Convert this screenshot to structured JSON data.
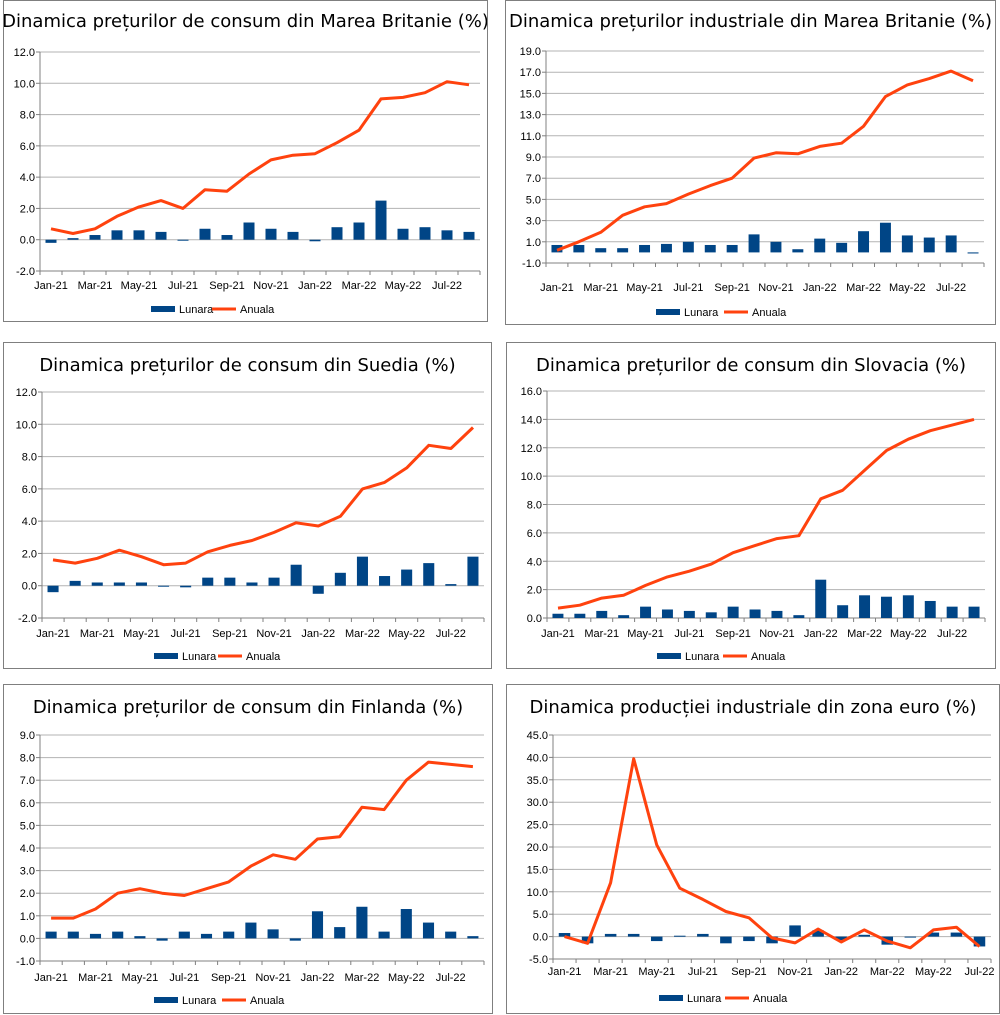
{
  "colors": {
    "bar": "#004586",
    "line": "#ff420e",
    "grid": "#b3b3b3",
    "axis": "#808080"
  },
  "chart_data": [
    {
      "type": "bar+line",
      "title": "Dinamica prețurilor de consum din Marea Britanie (%)",
      "ylim": [
        -2,
        12
      ],
      "ystep": 2,
      "ydecimals": 1,
      "x_tick_labels": [
        "Jan-21",
        "Mar-21",
        "May-21",
        "Jul-21",
        "Sep-21",
        "Nov-21",
        "Jan-22",
        "Mar-22",
        "May-22",
        "Jul-22"
      ],
      "tick_start": 0,
      "tick_every": 2,
      "series": [
        {
          "name": "Lunara",
          "kind": "bar",
          "values": [
            -0.2,
            0.1,
            0.3,
            0.6,
            0.6,
            0.5,
            0.0,
            0.7,
            0.3,
            1.1,
            0.7,
            0.5,
            -0.1,
            0.8,
            1.1,
            2.5,
            0.7,
            0.8,
            0.6,
            0.5
          ]
        },
        {
          "name": "Anuala",
          "kind": "line",
          "values": [
            0.7,
            0.4,
            0.7,
            1.5,
            2.1,
            2.5,
            2.0,
            3.2,
            3.1,
            4.2,
            5.1,
            5.4,
            5.5,
            6.2,
            7.0,
            9.0,
            9.1,
            9.4,
            10.1,
            9.9
          ]
        }
      ],
      "legend": [
        "Lunara",
        "Anuala"
      ]
    },
    {
      "type": "bar+line",
      "title": "Dinamica prețurilor industriale din Marea Britanie (%)",
      "ylim": [
        -1,
        19
      ],
      "ystep": 2,
      "ydecimals": 1,
      "x_tick_labels": [
        "Jan-21",
        "Mar-21",
        "May-21",
        "Jul-21",
        "Sep-21",
        "Nov-21",
        "Jan-22",
        "Mar-22",
        "May-22",
        "Jul-22"
      ],
      "tick_start": 0,
      "tick_every": 2,
      "series": [
        {
          "name": "Lunara",
          "kind": "bar",
          "values": [
            0.7,
            0.7,
            0.4,
            0.4,
            0.7,
            0.8,
            1.0,
            0.7,
            0.7,
            1.7,
            1.0,
            0.3,
            1.3,
            0.9,
            2.0,
            2.8,
            1.6,
            1.4,
            1.6,
            -0.1
          ]
        },
        {
          "name": "Anuala",
          "kind": "line",
          "values": [
            0.2,
            1.0,
            1.9,
            3.5,
            4.3,
            4.6,
            5.5,
            6.3,
            7.0,
            8.9,
            9.4,
            9.3,
            10.0,
            10.3,
            11.9,
            14.7,
            15.8,
            16.4,
            17.1,
            16.2
          ]
        }
      ],
      "legend": [
        "Lunara",
        "Anuala"
      ]
    },
    {
      "type": "bar+line",
      "title": "Dinamica prețurilor de consum din Suedia (%)",
      "ylim": [
        -2,
        12
      ],
      "ystep": 2,
      "ydecimals": 1,
      "x_tick_labels": [
        "Jan-21",
        "Mar-21",
        "May-21",
        "Jul-21",
        "Sep-21",
        "Nov-21",
        "Jan-22",
        "Mar-22",
        "May-22",
        "Jul-22"
      ],
      "tick_start": 0,
      "tick_every": 2,
      "series": [
        {
          "name": "Lunara",
          "kind": "bar",
          "values": [
            -0.4,
            0.3,
            0.2,
            0.2,
            0.2,
            0.0,
            -0.1,
            0.5,
            0.5,
            0.2,
            0.5,
            1.3,
            -0.5,
            0.8,
            1.8,
            0.6,
            1.0,
            1.4,
            0.1,
            1.8
          ]
        },
        {
          "name": "Anuala",
          "kind": "line",
          "values": [
            1.6,
            1.4,
            1.7,
            2.2,
            1.8,
            1.3,
            1.4,
            2.1,
            2.5,
            2.8,
            3.3,
            3.9,
            3.7,
            4.3,
            6.0,
            6.4,
            7.3,
            8.7,
            8.5,
            9.8
          ]
        }
      ],
      "legend": [
        "Lunara",
        "Anuala"
      ]
    },
    {
      "type": "bar+line",
      "title": "Dinamica prețurilor de consum din Slovacia (%)",
      "ylim": [
        0,
        16
      ],
      "ystep": 2,
      "ydecimals": 1,
      "x_tick_labels": [
        "Jan-21",
        "Mar-21",
        "May-21",
        "Jul-21",
        "Sep-21",
        "Nov-21",
        "Jan-22",
        "Mar-22",
        "May-22",
        "Jul-22"
      ],
      "tick_start": 0,
      "tick_every": 2,
      "series": [
        {
          "name": "Lunara",
          "kind": "bar",
          "values": [
            0.3,
            0.3,
            0.5,
            0.2,
            0.8,
            0.6,
            0.5,
            0.4,
            0.8,
            0.6,
            0.5,
            0.2,
            2.7,
            0.9,
            1.6,
            1.5,
            1.6,
            1.2,
            0.8,
            0.8
          ]
        },
        {
          "name": "Anuala",
          "kind": "line",
          "values": [
            0.7,
            0.9,
            1.4,
            1.6,
            2.3,
            2.9,
            3.3,
            3.8,
            4.6,
            5.1,
            5.6,
            5.8,
            8.4,
            9.0,
            10.4,
            11.8,
            12.6,
            13.2,
            13.6,
            14.0
          ]
        }
      ],
      "legend": [
        "Lunara",
        "Anuala"
      ]
    },
    {
      "type": "bar+line",
      "title": "Dinamica prețurilor de consum din Finlanda (%)",
      "ylim": [
        -1,
        9
      ],
      "ystep": 1,
      "ydecimals": 1,
      "x_tick_labels": [
        "Jan-21",
        "Mar-21",
        "May-21",
        "Jul-21",
        "Sep-21",
        "Nov-21",
        "Jan-22",
        "Mar-22",
        "May-22",
        "Jul-22"
      ],
      "tick_start": 0,
      "tick_every": 2,
      "series": [
        {
          "name": "Lunara",
          "kind": "bar",
          "values": [
            0.3,
            0.3,
            0.2,
            0.3,
            0.1,
            -0.1,
            0.3,
            0.2,
            0.3,
            0.7,
            0.4,
            -0.1,
            1.2,
            0.5,
            1.4,
            0.3,
            1.3,
            0.7,
            0.3,
            0.1
          ]
        },
        {
          "name": "Anuala",
          "kind": "line",
          "values": [
            0.9,
            0.9,
            1.3,
            2.0,
            2.2,
            2.0,
            1.9,
            2.2,
            2.5,
            3.2,
            3.7,
            3.5,
            4.4,
            4.5,
            5.8,
            5.7,
            7.0,
            7.8,
            7.7,
            7.6
          ]
        }
      ],
      "legend": [
        "Lunara",
        "Anuala"
      ]
    },
    {
      "type": "bar+line",
      "title": "Dinamica producției industriale din zona euro (%)",
      "ylim": [
        -5,
        45
      ],
      "ystep": 5,
      "ydecimals": 1,
      "x_tick_labels": [
        "Jan-21",
        "Mar-21",
        "May-21",
        "Jul-21",
        "Sep-21",
        "Nov-21",
        "Jan-22",
        "Mar-22",
        "May-22",
        "Jul-22"
      ],
      "tick_start": 0,
      "tick_every": 2,
      "series": [
        {
          "name": "Lunara",
          "kind": "bar",
          "values": [
            0.8,
            -1.5,
            0.6,
            0.6,
            -1.0,
            0.2,
            0.6,
            -1.5,
            -1.0,
            -1.5,
            2.5,
            1.4,
            -0.8,
            0.4,
            -1.8,
            0.0,
            0.9,
            0.9,
            -2.2
          ]
        },
        {
          "name": "Anuala",
          "kind": "line",
          "values": [
            0.0,
            -1.5,
            12.0,
            39.7,
            20.5,
            10.8,
            8.3,
            5.6,
            4.2,
            -0.3,
            -1.4,
            1.7,
            -1.2,
            1.5,
            -1.0,
            -2.5,
            1.5,
            2.1,
            -2.2
          ]
        }
      ],
      "legend": [
        "Lunara",
        "Anuala"
      ]
    }
  ]
}
